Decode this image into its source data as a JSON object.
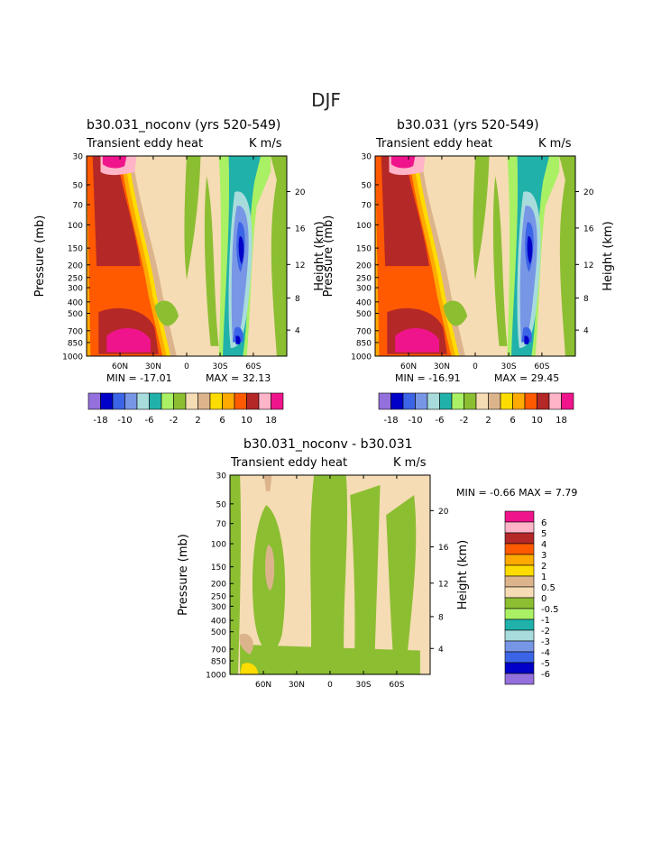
{
  "page_title": "DJF",
  "colors": {
    "c1": "#9470dc",
    "c2": "#0000c8",
    "c3": "#3c64e6",
    "c4": "#7896e6",
    "c5": "#a8dcdc",
    "c6": "#20b2aa",
    "c7": "#aaf064",
    "c8": "#8cbe32",
    "c9": "#f5dcb4",
    "c10": "#dcb48c",
    "c11": "#ffdc00",
    "c12": "#ffaa00",
    "c13": "#ff5a00",
    "c14": "#b42828",
    "c15": "#ffb4c8",
    "c16": "#f0148c"
  },
  "chart_data": [
    {
      "type": "heatmap",
      "title": "b30.031_noconv (yrs 520-549)",
      "left_string": "Transient eddy heat",
      "right_string": "K m/s",
      "ylabel": "Pressure (mb)",
      "ylabel_right": "Height (km)",
      "x_ticks": [
        "60N",
        "30N",
        "0",
        "30S",
        "60S"
      ],
      "y_ticks": [
        "30",
        "50",
        "70",
        "100",
        "150",
        "200",
        "250",
        "300",
        "400",
        "500",
        "700",
        "850",
        "1000"
      ],
      "y_ticks_right": [
        "20",
        "16",
        "12",
        "8",
        "4"
      ],
      "min_label": "MIN = -17.01",
      "max_label": "MAX = 32.13",
      "min": -17.01,
      "max": 32.13,
      "levels_printed": [
        "-18",
        "-10",
        "-6",
        "-2",
        "2",
        "6",
        "10",
        "18"
      ]
    },
    {
      "type": "heatmap",
      "title": "b30.031 (yrs 520-549)",
      "left_string": "Transient eddy heat",
      "right_string": "K m/s",
      "ylabel": "Pressure (mb)",
      "ylabel_right": "Height (km)",
      "x_ticks": [
        "60N",
        "30N",
        "0",
        "30S",
        "60S"
      ],
      "y_ticks": [
        "30",
        "50",
        "70",
        "100",
        "150",
        "200",
        "250",
        "300",
        "400",
        "500",
        "700",
        "850",
        "1000"
      ],
      "y_ticks_right": [
        "20",
        "16",
        "12",
        "8",
        "4"
      ],
      "min_label": "MIN = -16.91",
      "max_label": "MAX = 29.45",
      "min": -16.91,
      "max": 29.45,
      "levels_printed": [
        "-18",
        "-10",
        "-6",
        "-2",
        "2",
        "6",
        "10",
        "18"
      ]
    },
    {
      "type": "heatmap",
      "title": "b30.031_noconv - b30.031",
      "left_string": "Transient eddy heat",
      "right_string": "K m/s",
      "ylabel": "Pressure (mb)",
      "ylabel_right": "Height (km)",
      "x_ticks": [
        "60N",
        "30N",
        "0",
        "30S",
        "60S"
      ],
      "y_ticks": [
        "30",
        "50",
        "70",
        "100",
        "150",
        "200",
        "250",
        "300",
        "400",
        "500",
        "700",
        "850",
        "1000"
      ],
      "y_ticks_right": [
        "20",
        "16",
        "12",
        "8",
        "4"
      ],
      "minmax_label": "MIN =   -0.66   MAX =    7.79",
      "min": -0.66,
      "max": 7.79,
      "levels_printed": [
        "6",
        "5",
        "4",
        "3",
        "2",
        "1",
        "0.5",
        "0",
        "-0.5",
        "-1",
        "-2",
        "-3",
        "-4",
        "-5",
        "-6"
      ]
    }
  ]
}
